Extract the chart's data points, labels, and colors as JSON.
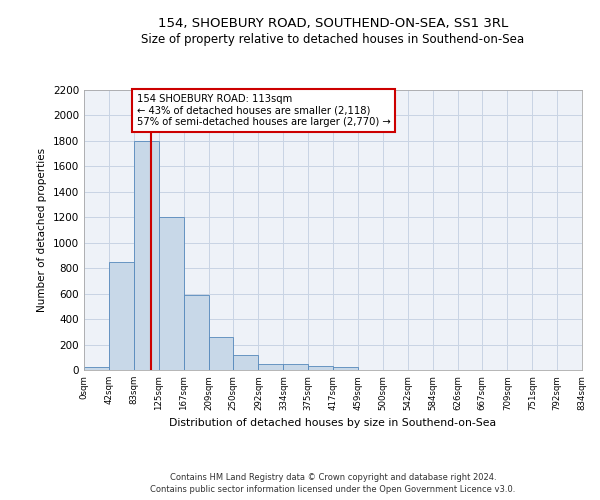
{
  "title_line1": "154, SHOEBURY ROAD, SOUTHEND-ON-SEA, SS1 3RL",
  "title_line2": "Size of property relative to detached houses in Southend-on-Sea",
  "xlabel": "Distribution of detached houses by size in Southend-on-Sea",
  "ylabel": "Number of detached properties",
  "bar_edges": [
    0,
    42,
    83,
    125,
    167,
    209,
    250,
    292,
    334,
    375,
    417,
    459,
    500,
    542,
    584,
    626,
    667,
    709,
    751,
    792,
    834
  ],
  "bar_heights": [
    25,
    850,
    1800,
    1200,
    590,
    260,
    115,
    50,
    50,
    32,
    20,
    0,
    0,
    0,
    0,
    0,
    0,
    0,
    0,
    0
  ],
  "bar_color": "#c8d8e8",
  "bar_edgecolor": "#5588bb",
  "vline_x": 113,
  "vline_color": "#cc0000",
  "annotation_text": "154 SHOEBURY ROAD: 113sqm\n← 43% of detached houses are smaller (2,118)\n57% of semi-detached houses are larger (2,770) →",
  "annotation_box_color": "#cc0000",
  "ylim": [
    0,
    2200
  ],
  "yticks": [
    0,
    200,
    400,
    600,
    800,
    1000,
    1200,
    1400,
    1600,
    1800,
    2000,
    2200
  ],
  "grid_color": "#c8d4e4",
  "background_color": "#eef2f8",
  "footer_line1": "Contains HM Land Registry data © Crown copyright and database right 2024.",
  "footer_line2": "Contains public sector information licensed under the Open Government Licence v3.0.",
  "tick_labels": [
    "0sqm",
    "42sqm",
    "83sqm",
    "125sqm",
    "167sqm",
    "209sqm",
    "250sqm",
    "292sqm",
    "334sqm",
    "375sqm",
    "417sqm",
    "459sqm",
    "500sqm",
    "542sqm",
    "584sqm",
    "626sqm",
    "667sqm",
    "709sqm",
    "751sqm",
    "792sqm",
    "834sqm"
  ]
}
